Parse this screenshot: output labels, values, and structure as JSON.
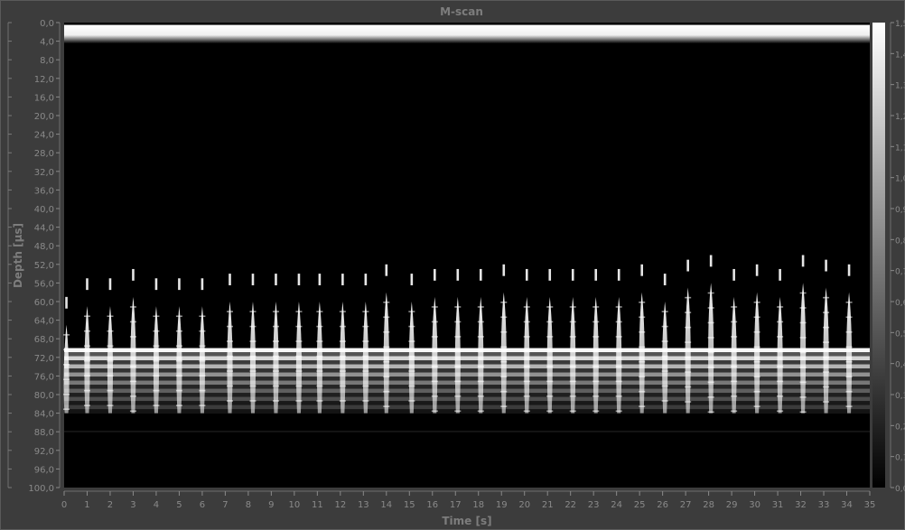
{
  "chart_data": {
    "type": "heatmap",
    "title": "M-scan",
    "xlabel": "Time [s]",
    "ylabel": "Depth [µs]",
    "xlim": [
      0,
      35
    ],
    "ylim": [
      100,
      0
    ],
    "x_ticks": [
      "0",
      "1",
      "2",
      "3",
      "4",
      "5",
      "6",
      "7",
      "8",
      "9",
      "10",
      "11",
      "12",
      "13",
      "14",
      "15",
      "16",
      "17",
      "18",
      "19",
      "20",
      "21",
      "22",
      "23",
      "24",
      "25",
      "26",
      "27",
      "28",
      "29",
      "30",
      "31",
      "32",
      "33",
      "34",
      "35"
    ],
    "y_ticks": [
      "0,0",
      "4,0",
      "8,0",
      "12,0",
      "16,0",
      "20,0",
      "24,0",
      "28,0",
      "32,0",
      "36,0",
      "40,0",
      "44,0",
      "48,0",
      "52,0",
      "56,0",
      "60,0",
      "64,0",
      "68,0",
      "72,0",
      "76,0",
      "80,0",
      "84,0",
      "88,0",
      "92,0",
      "96,0",
      "100,0"
    ],
    "colorbar": {
      "range": [
        0,
        1.5
      ],
      "ticks": [
        "1,5",
        "1,4",
        "1,3",
        "1,2",
        "1,1",
        "1,0",
        "0,9",
        "0,8",
        "0,7",
        "0,6",
        "0,5",
        "0,4",
        "0,3",
        "0,2",
        "0,1",
        "0,0"
      ]
    },
    "colormap": [
      "#000000",
      "#ffffff"
    ],
    "bands": [
      {
        "from": 0.5,
        "to": 4.5,
        "intensity": 1.3
      },
      {
        "from": 70,
        "to": 84,
        "intensity": 1.0
      }
    ],
    "pulses": [
      {
        "t": 0.1,
        "top": 59
      },
      {
        "t": 1.0,
        "top": 55
      },
      {
        "t": 2.0,
        "top": 55
      },
      {
        "t": 3.0,
        "top": 53
      },
      {
        "t": 4.0,
        "top": 55
      },
      {
        "t": 5.0,
        "top": 55
      },
      {
        "t": 6.0,
        "top": 55
      },
      {
        "t": 7.2,
        "top": 54
      },
      {
        "t": 8.2,
        "top": 54
      },
      {
        "t": 9.2,
        "top": 54
      },
      {
        "t": 10.2,
        "top": 54
      },
      {
        "t": 11.1,
        "top": 54
      },
      {
        "t": 12.1,
        "top": 54
      },
      {
        "t": 13.1,
        "top": 54
      },
      {
        "t": 14.0,
        "top": 52
      },
      {
        "t": 15.1,
        "top": 54
      },
      {
        "t": 16.1,
        "top": 53
      },
      {
        "t": 17.1,
        "top": 53
      },
      {
        "t": 18.1,
        "top": 53
      },
      {
        "t": 19.1,
        "top": 52
      },
      {
        "t": 20.1,
        "top": 53
      },
      {
        "t": 21.1,
        "top": 53
      },
      {
        "t": 22.1,
        "top": 53
      },
      {
        "t": 23.1,
        "top": 53
      },
      {
        "t": 24.1,
        "top": 53
      },
      {
        "t": 25.1,
        "top": 52
      },
      {
        "t": 26.1,
        "top": 54
      },
      {
        "t": 27.1,
        "top": 51
      },
      {
        "t": 28.1,
        "top": 50
      },
      {
        "t": 29.1,
        "top": 53
      },
      {
        "t": 30.1,
        "top": 52
      },
      {
        "t": 31.1,
        "top": 53
      },
      {
        "t": 32.1,
        "top": 50
      },
      {
        "t": 33.1,
        "top": 51
      },
      {
        "t": 34.1,
        "top": 52
      }
    ],
    "grid": false,
    "legend": "colorbar-right"
  }
}
